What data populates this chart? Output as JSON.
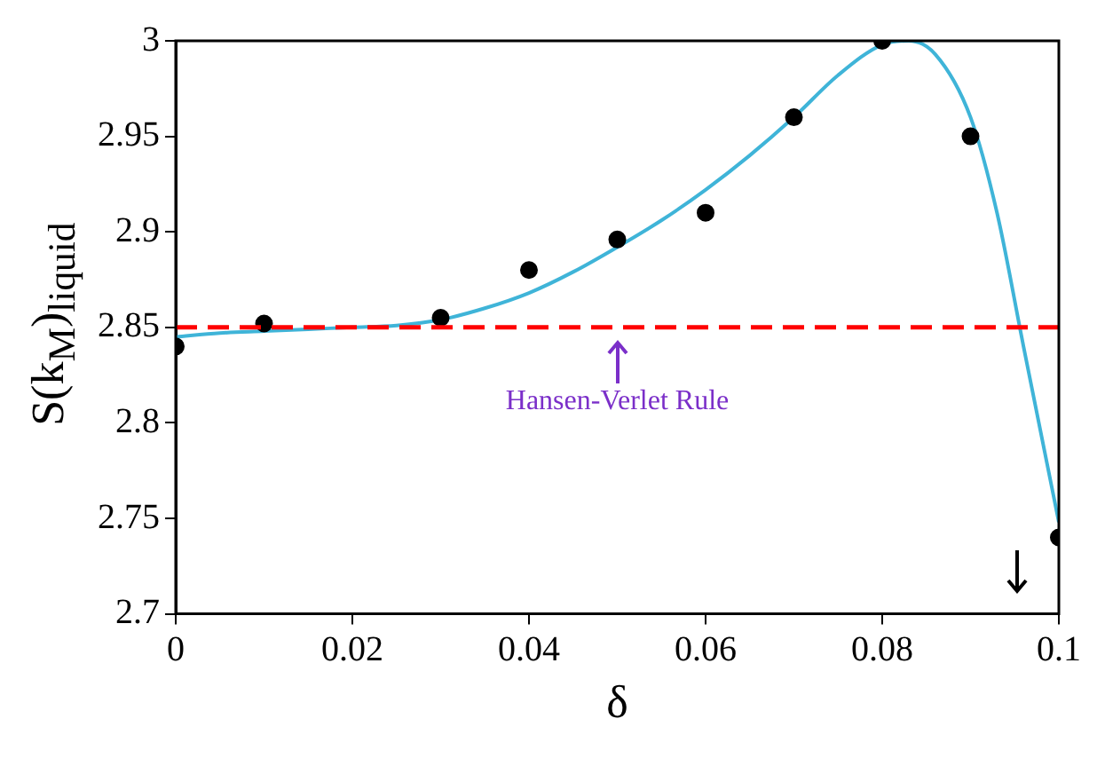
{
  "chart_data": {
    "type": "scatter",
    "xlabel": "δ",
    "ylabel": "S(k$_{M}$)$_{liquid}$",
    "series": [
      {
        "marker": "circle",
        "color": "#000000",
        "x": [
          0,
          0.01,
          0.03,
          0.04,
          0.05,
          0.06,
          0.07,
          0.08,
          0.09,
          0.1
        ],
        "values": [
          2.84,
          2.852,
          2.855,
          2.88,
          2.896,
          2.91,
          2.96,
          3.0,
          2.95,
          2.74
        ]
      },
      {
        "type": "line",
        "marker": "none",
        "color": "#3fb4d8",
        "x": [
          0,
          0.005,
          0.01,
          0.015,
          0.02,
          0.025,
          0.03,
          0.035,
          0.04,
          0.045,
          0.05,
          0.055,
          0.06,
          0.065,
          0.07,
          0.075,
          0.08,
          0.083,
          0.086,
          0.09,
          0.093,
          0.096,
          0.1
        ],
        "values": [
          2.845,
          2.847,
          2.848,
          2.849,
          2.85,
          2.851,
          2.854,
          2.86,
          2.868,
          2.879,
          2.892,
          2.906,
          2.922,
          2.94,
          2.96,
          2.982,
          2.998,
          3.0,
          2.993,
          2.96,
          2.91,
          2.84,
          2.748
        ]
      }
    ],
    "xlim": [
      0,
      0.1
    ],
    "xticks": [
      0,
      0.02,
      0.04,
      0.06,
      0.08,
      0.1
    ],
    "ylim": [
      2.7,
      3
    ],
    "yticks": [
      2.7,
      2.75,
      2.8,
      2.85,
      2.9,
      2.95,
      3
    ],
    "ref_lines": [
      {
        "axis": "y",
        "value": 2.85,
        "label": "Hansen-Verlet Rule",
        "color": "#ff0000",
        "line_style": "dashed"
      }
    ],
    "grid": false,
    "legend": false
  }
}
